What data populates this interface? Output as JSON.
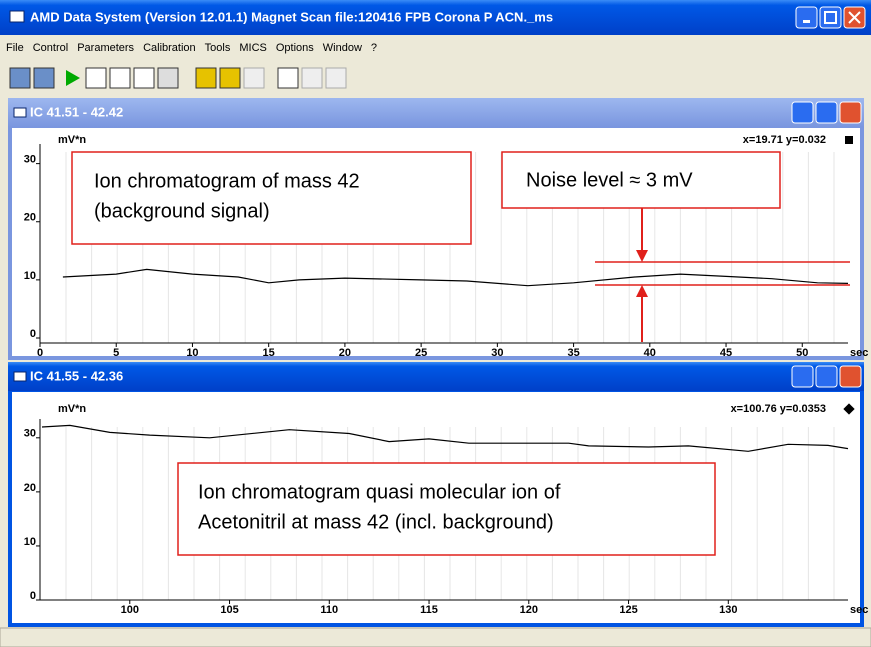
{
  "window": {
    "title": "AMD Data System (Version 12.01.1)  Magnet Scan  file:120416 FPB Corona P ACN._ms",
    "menu": [
      "File",
      "Control",
      "Parameters",
      "Calibration",
      "Tools",
      "MICS",
      "Options",
      "Window",
      "?"
    ]
  },
  "chart_data": [
    {
      "type": "line",
      "title": "IC  41.51 - 42.42",
      "y_label": "mV*n",
      "cursor": "x=19.71  y=0.032",
      "x_unit": "sec",
      "color": "#000000",
      "xlim": [
        0,
        53
      ],
      "ylim": [
        0,
        32
      ],
      "xticks": [
        0,
        5,
        10,
        15,
        20,
        25,
        30,
        35,
        40,
        45,
        50
      ],
      "yticks": [
        0,
        10,
        20,
        30
      ],
      "x": [
        1.5,
        5,
        7,
        10,
        13,
        15,
        17,
        20,
        25,
        28,
        32,
        35,
        39,
        42,
        45,
        48,
        51,
        53
      ],
      "values": [
        10.5,
        11,
        11.8,
        11,
        10.5,
        9.5,
        10,
        10.3,
        10,
        9.8,
        9,
        9.5,
        10.5,
        11,
        10.6,
        10.2,
        9.5,
        9.4
      ]
    },
    {
      "type": "line",
      "title": "IC  41.55 - 42.36",
      "y_label": "mV*n",
      "cursor": "x=100.76  y=0.0353",
      "x_unit": "sec",
      "color": "#000000",
      "xlim": [
        95.5,
        136
      ],
      "ylim": [
        0,
        32
      ],
      "xticks": [
        100,
        105,
        110,
        115,
        120,
        125,
        130
      ],
      "yticks": [
        0,
        10,
        20,
        30
      ],
      "x": [
        95.6,
        97,
        99,
        101,
        104,
        108,
        111,
        113,
        115,
        117,
        122,
        123,
        126,
        128,
        131,
        133,
        135,
        136
      ],
      "values": [
        32,
        32.3,
        31,
        30.5,
        30,
        31.5,
        30.8,
        29.3,
        29.8,
        29,
        29,
        28.5,
        28.3,
        28.5,
        27.5,
        28.8,
        28.6,
        28
      ]
    }
  ],
  "annotations": {
    "background": [
      "Ion chromatogram of mass 42",
      "(background signal)"
    ],
    "noise": "Noise level ≈ 3 mV",
    "acetonitril": [
      "Ion chromatogram quasi molecular ion of",
      "Acetonitril at mass 42 (incl. background)"
    ]
  }
}
